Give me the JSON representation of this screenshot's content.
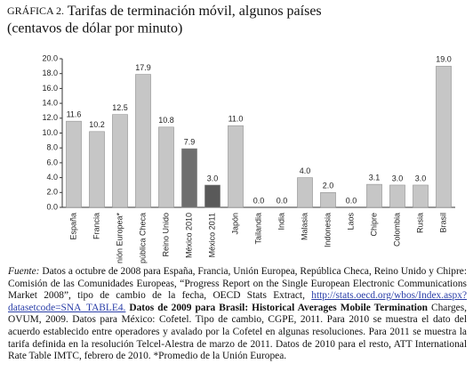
{
  "chart_data": {
    "type": "bar",
    "title_label": "GRÁFICA 2.",
    "title": "Tarifas de terminación móvil, algunos países",
    "subtitle": "(centavos de dólar por minuto)",
    "categories": [
      "España",
      "Francia",
      "Unión Europea*",
      "República Checa",
      "Reino Unido",
      "México 2010",
      "México 2011",
      "Japón",
      "Tailandia",
      "India",
      "Malasia",
      "Indonesia",
      "Laos",
      "Chipre",
      "Colombia",
      "Rusia",
      "Brasil"
    ],
    "values": [
      11.6,
      10.2,
      12.5,
      17.9,
      10.8,
      7.9,
      3.0,
      11.0,
      0.0,
      0.0,
      4.0,
      2.0,
      0.0,
      3.1,
      3.0,
      3.0,
      19.0
    ],
    "value_labels": [
      "11.6",
      "10.2",
      "12.5",
      "17.9",
      "10.8",
      "7.9",
      "3.0",
      "11.0",
      "0.0",
      "0.0",
      "4.0",
      "2.0",
      "0.0",
      "3.1",
      "3.0",
      "3.0",
      "19.0"
    ],
    "colors": [
      "#c6c6c6",
      "#c6c6c6",
      "#c6c6c6",
      "#c6c6c6",
      "#c6c6c6",
      "#6e6e6e",
      "#595959",
      "#c6c6c6",
      "#c6c6c6",
      "#c6c6c6",
      "#c6c6c6",
      "#c6c6c6",
      "#c6c6c6",
      "#c6c6c6",
      "#c6c6c6",
      "#c6c6c6",
      "#c6c6c6"
    ],
    "ylim": [
      0,
      20
    ],
    "yticks": [
      {
        "value": 0,
        "label": "0.0"
      },
      {
        "value": 2,
        "label": "2.0"
      },
      {
        "value": 4,
        "label": "4.0"
      },
      {
        "value": 6,
        "label": "6.0"
      },
      {
        "value": 8,
        "label": "8.0"
      },
      {
        "value": 10,
        "label": "10.0"
      },
      {
        "value": 12,
        "label": "12.0"
      },
      {
        "value": 14,
        "label": "14.0"
      },
      {
        "value": 16,
        "label": "16.0"
      },
      {
        "value": 18,
        "label": "18.0"
      },
      {
        "value": 20,
        "label": "20.0"
      }
    ],
    "grid": false
  },
  "source_note": {
    "label": "Fuente:",
    "text1": "Datos a octubre de 2008 para España, Francia, Unión Europea, República Checa, Reino Unido y Chipre: Comisión de las Comunidades Europeas, “Progress Report on the Single European Electronic Communications Market 2008”, tipo de cambio de la fecha, OECD Stats Extract,",
    "link": "http://stats.oecd.org/wbos/Index.aspx?datasetcode=SNA_TABLE4.",
    "bold": "Datos de 2009 para Brasil: Historical Averages Mobile Termination",
    "text2": "Charges, OVUM, 2009. Datos para México: Cofetel. Tipo de cambio, CGPE, 2011. Para 2010 se muestra el dato del acuerdo establecido entre operadores y avalado por la Cofetel en algunas resoluciones. Para 2011 se muestra la tarifa definida en la resolución Telcel-Alestra de marzo de 2011. Datos de 2010 para el resto, ATT International Rate Table IMTC, febrero de 2010.  *Promedio de la Unión Europea."
  }
}
